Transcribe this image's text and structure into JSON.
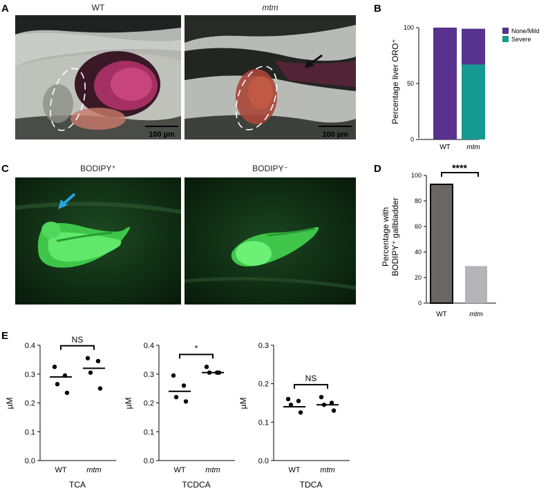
{
  "panels": {
    "A": {
      "label": "A",
      "left_title": "WT",
      "right_title": "mtm",
      "left_scale": "100 µm",
      "right_scale": "100 µm"
    },
    "B": {
      "label": "B",
      "ylabel": "Percentage liver ORO⁺",
      "legend": [
        "None/Mild",
        "Severe"
      ]
    },
    "C": {
      "label": "C",
      "left_title": "BODIPY⁺",
      "right_title": "BODIPY⁻"
    },
    "D": {
      "label": "D",
      "ylabel_line1": "Percentage with",
      "ylabel_line2": "BODIPY⁺ gallbladder",
      "significance": "****"
    },
    "E": {
      "label": "E",
      "ylabel": "µM"
    }
  },
  "colors": {
    "none_mild": "#57338f",
    "severe": "#169990",
    "wt_bar": "#6b6666",
    "mtm_bar": "#b4b3b8"
  },
  "chart_data": [
    {
      "id": "B",
      "type": "bar",
      "stacked": true,
      "categories": [
        "WT",
        "mtm"
      ],
      "series": [
        {
          "name": "Severe",
          "values": [
            0,
            67
          ]
        },
        {
          "name": "None/Mild",
          "values": [
            100,
            32
          ]
        }
      ],
      "ylabel": "Percentage liver ORO⁺",
      "ylim": [
        0,
        100
      ],
      "yticks": [
        0,
        50,
        100
      ],
      "legend": "top-right"
    },
    {
      "id": "D",
      "type": "bar",
      "categories": [
        "WT",
        "mtm"
      ],
      "values": [
        93,
        29
      ],
      "ylabel": "Percentage with BODIPY⁺ gallbladder",
      "ylim": [
        0,
        100
      ],
      "yticks": [
        0,
        20,
        40,
        60,
        80,
        100
      ],
      "significance": "****"
    },
    {
      "id": "E1",
      "type": "scatter",
      "xlabel": "TCA",
      "categories": [
        "WT",
        "mtm"
      ],
      "points": {
        "WT": [
          0.325,
          0.295,
          0.265,
          0.235
        ],
        "mtm": [
          0.355,
          0.345,
          0.305,
          0.25
        ]
      },
      "means": [
        0.29,
        0.32
      ],
      "ylim": [
        0,
        0.4
      ],
      "yticks": [
        0.0,
        0.1,
        0.2,
        0.3,
        0.4
      ],
      "ylabel": "µM",
      "significance": "NS"
    },
    {
      "id": "E2",
      "type": "scatter",
      "xlabel": "TCDCA",
      "categories": [
        "WT",
        "mtm"
      ],
      "points": {
        "WT": [
          0.295,
          0.26,
          0.22,
          0.205
        ],
        "mtm": [
          0.325,
          0.305,
          0.305,
          0.305
        ]
      },
      "means": [
        0.24,
        0.305
      ],
      "ylim": [
        0,
        0.4
      ],
      "yticks": [
        0.0,
        0.1,
        0.2,
        0.3,
        0.4
      ],
      "ylabel": "µM",
      "significance": "*"
    },
    {
      "id": "E3",
      "type": "scatter",
      "xlabel": "TDCA",
      "categories": [
        "WT",
        "mtm"
      ],
      "points": {
        "WT": [
          0.16,
          0.155,
          0.145,
          0.125
        ],
        "mtm": [
          0.165,
          0.15,
          0.145,
          0.13
        ]
      },
      "means": [
        0.14,
        0.145
      ],
      "ylim": [
        0,
        0.3
      ],
      "yticks": [
        0.0,
        0.1,
        0.2,
        0.3
      ],
      "ylabel": "µM",
      "significance": "NS"
    }
  ]
}
